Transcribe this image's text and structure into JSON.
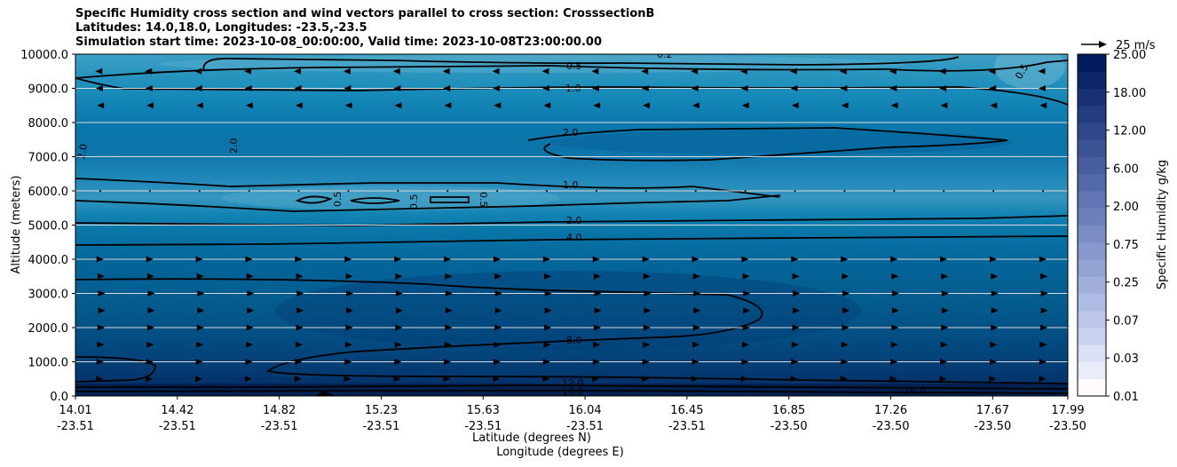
{
  "chart_data": {
    "type": "contourf",
    "title_lines": [
      "Specific Humidity cross section and wind vectors parallel to cross section: CrosssectionB",
      "Latitudes: 14.0,18.0, Longitudes: -23.5,-23.5",
      "Simulation start time: 2023-10-08_00:00:00, Valid time: 2023-10-08T23:00:00.00"
    ],
    "ylabel": "Altitude (meters)",
    "xlabel_lat": "Latitude (degrees N)",
    "xlabel_lon": "Longitude (degrees E)",
    "ylim": [
      0,
      10000
    ],
    "y_ticks": [
      "0.0",
      "1000.0",
      "2000.0",
      "3000.0",
      "4000.0",
      "5000.0",
      "6000.0",
      "7000.0",
      "8000.0",
      "9000.0",
      "10000.0"
    ],
    "y_tick_values": [
      0,
      1000,
      2000,
      3000,
      4000,
      5000,
      6000,
      7000,
      8000,
      9000,
      10000
    ],
    "x_ticks": [
      {
        "lat": "14.01",
        "lon": "-23.51"
      },
      {
        "lat": "14.42",
        "lon": "-23.51"
      },
      {
        "lat": "14.82",
        "lon": "-23.51"
      },
      {
        "lat": "15.23",
        "lon": "-23.51"
      },
      {
        "lat": "15.63",
        "lon": "-23.51"
      },
      {
        "lat": "16.04",
        "lon": "-23.51"
      },
      {
        "lat": "16.45",
        "lon": "-23.51"
      },
      {
        "lat": "16.85",
        "lon": "-23.50"
      },
      {
        "lat": "17.26",
        "lon": "-23.50"
      },
      {
        "lat": "17.67",
        "lon": "-23.50"
      },
      {
        "lat": "17.99",
        "lon": "-23.50"
      }
    ],
    "grid": "horizontal",
    "colorbar": {
      "label": "Specific Humidity g/kg",
      "tick_labels": [
        "0.01",
        "0.03",
        "0.07",
        "0.25",
        "0.75",
        "2.00",
        "6.00",
        "12.00",
        "18.00",
        "25.00"
      ],
      "levels": 20,
      "colormap": "PuBu"
    },
    "quiver_key": "25 m/s",
    "contour_labels": [
      "0.2",
      "0.5",
      "1.0",
      "2.0",
      "1.0",
      "2.0",
      "4.0",
      "8.0",
      "12.0",
      "16.0",
      "0.5",
      "0.5",
      "0.5",
      "2.0",
      "2.0",
      "0.5",
      "16.0"
    ],
    "humidity_profile": [
      {
        "altitude": 0,
        "q": 16.0
      },
      {
        "altitude": 300,
        "q": 14.0
      },
      {
        "altitude": 800,
        "q": 12.0
      },
      {
        "altitude": 1500,
        "q": 10.0
      },
      {
        "altitude": 2500,
        "q": 8.0
      },
      {
        "altitude": 3500,
        "q": 6.0
      },
      {
        "altitude": 4400,
        "q": 4.0
      },
      {
        "altitude": 5000,
        "q": 2.0
      },
      {
        "altitude": 5800,
        "q": 0.8
      },
      {
        "altitude": 7000,
        "q": 2.0
      },
      {
        "altitude": 8500,
        "q": 1.3
      },
      {
        "altitude": 9200,
        "q": 0.9
      },
      {
        "altitude": 10000,
        "q": 0.3
      }
    ],
    "wind_rows": [
      {
        "altitude": 9500,
        "direction": "southward",
        "speed": 6
      },
      {
        "altitude": 9000,
        "direction": "southward",
        "speed": 5
      },
      {
        "altitude": 8500,
        "direction": "southward",
        "speed": 3
      },
      {
        "altitude": 6000,
        "direction": "calm",
        "speed": 1
      },
      {
        "altitude": 4000,
        "direction": "northward",
        "speed": 3
      },
      {
        "altitude": 3500,
        "direction": "northward",
        "speed": 5
      },
      {
        "altitude": 3000,
        "direction": "northward",
        "speed": 6
      },
      {
        "altitude": 2500,
        "direction": "northward",
        "speed": 6
      },
      {
        "altitude": 2000,
        "direction": "northward",
        "speed": 5
      },
      {
        "altitude": 1500,
        "direction": "northward",
        "speed": 4
      },
      {
        "altitude": 1000,
        "direction": "northward",
        "speed": 3
      },
      {
        "altitude": 500,
        "direction": "northward",
        "speed": 2
      }
    ]
  }
}
